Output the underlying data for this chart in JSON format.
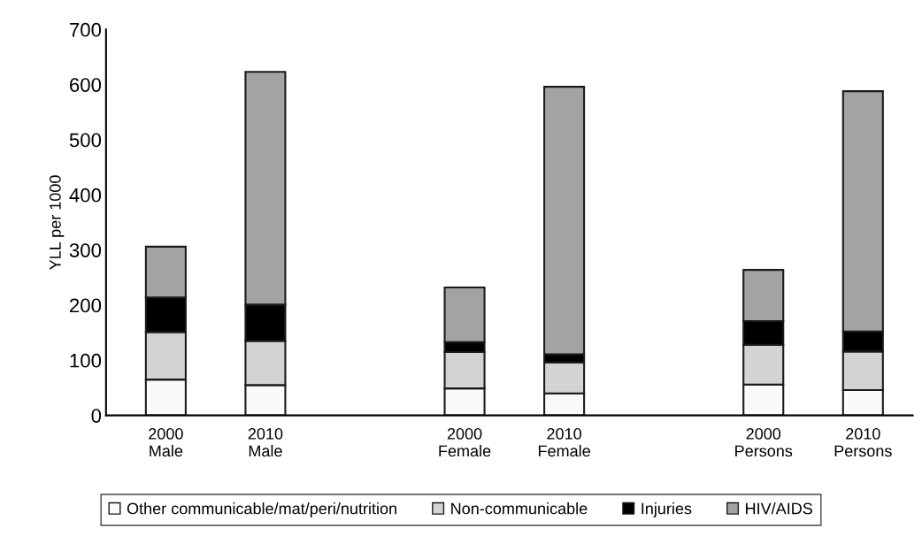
{
  "chart_data": {
    "type": "bar",
    "stacked": true,
    "ylabel": "YLL per 1000",
    "categories": [
      "2000\nMale",
      "2010\nMale",
      null,
      "2000\nFemale",
      "2010\nFemale",
      null,
      "2000\nPersons",
      "2010\nPersons"
    ],
    "series": [
      {
        "name": "Other communicable/mat/peri/nutrition",
        "color": "#fafafa",
        "values": [
          65,
          55,
          null,
          49,
          40,
          null,
          56,
          46
        ]
      },
      {
        "name": "Non-communicable",
        "color": "#d3d3d3",
        "values": [
          86,
          80,
          null,
          66,
          56,
          null,
          72,
          70
        ]
      },
      {
        "name": "Injuries",
        "color": "#000000",
        "values": [
          63,
          66,
          null,
          18,
          15,
          null,
          43,
          36
        ]
      },
      {
        "name": "HIV/AIDS",
        "color": "#a3a3a3",
        "values": [
          92,
          422,
          null,
          99,
          485,
          null,
          93,
          436
        ]
      }
    ],
    "ylim": [
      0,
      700
    ],
    "yticks": [
      0,
      100,
      200,
      300,
      400,
      500,
      600,
      700
    ],
    "grid": false,
    "legend": "bottom"
  }
}
